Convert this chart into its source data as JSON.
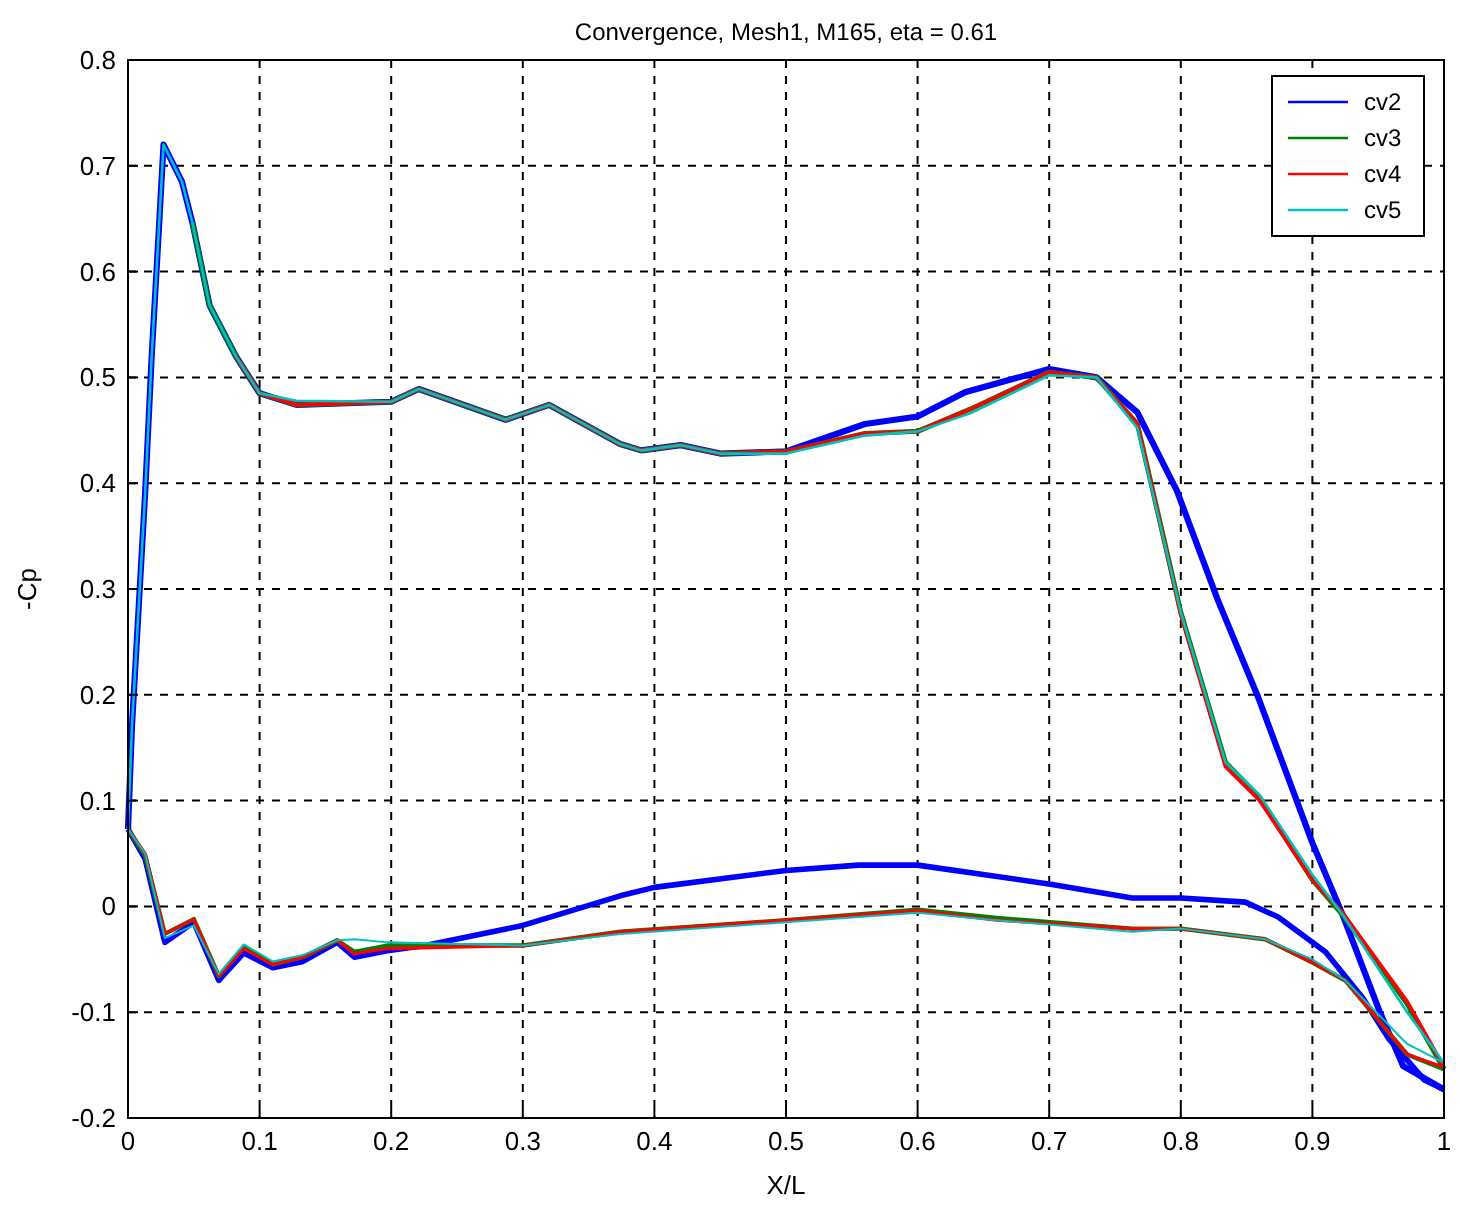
{
  "chart_data": {
    "type": "line",
    "title": "Convergence, Mesh1, M165, eta = 0.61",
    "xlabel": "X/L",
    "ylabel": "-Cp",
    "xlim": [
      0,
      1
    ],
    "ylim": [
      -0.2,
      0.8
    ],
    "xticks": [
      0,
      0.1,
      0.2,
      0.3,
      0.4,
      0.5,
      0.6,
      0.7,
      0.8,
      0.9,
      1
    ],
    "yticks": [
      -0.2,
      -0.1,
      0,
      0.1,
      0.2,
      0.3,
      0.4,
      0.5,
      0.6,
      0.7,
      0.8
    ],
    "grid": true,
    "legend": "top right",
    "line_style": "solid",
    "marker": "none",
    "series": [
      {
        "name": "cv2",
        "color": "#0000ff",
        "x": [
          0,
          0.003,
          0.008,
          0.013,
          0.018,
          0.023,
          0.027,
          0.041,
          0.049,
          0.062,
          0.082,
          0.1,
          0.128,
          0.2,
          0.221,
          0.287,
          0.32,
          0.374,
          0.39,
          0.42,
          0.45,
          0.5,
          0.56,
          0.6,
          0.636,
          0.7,
          0.736,
          0.767,
          0.797,
          0.828,
          0.859,
          0.9,
          0.923,
          0.951,
          0.969,
          1
        ],
        "values": [
          0.073,
          0.17,
          0.28,
          0.39,
          0.52,
          0.63,
          0.72,
          0.685,
          0.646,
          0.568,
          0.52,
          0.485,
          0.474,
          0.477,
          0.489,
          0.46,
          0.474,
          0.437,
          0.431,
          0.436,
          0.428,
          0.43,
          0.456,
          0.463,
          0.486,
          0.508,
          0.5,
          0.467,
          0.393,
          0.29,
          0.197,
          0.06,
          -0.008,
          -0.099,
          -0.151,
          -0.173
        ]
      },
      {
        "color": "#0000ff",
        "x": [
          0,
          0.013,
          0.028,
          0.05,
          0.069,
          0.088,
          0.11,
          0.133,
          0.159,
          0.172,
          0.197,
          0.226,
          0.3,
          0.374,
          0.4,
          0.5,
          0.555,
          0.6,
          0.701,
          0.763,
          0.8,
          0.849,
          0.874,
          0.91,
          0.938,
          0.958,
          0.985,
          1
        ],
        "values": [
          0.073,
          0.045,
          -0.034,
          -0.015,
          -0.07,
          -0.044,
          -0.058,
          -0.052,
          -0.034,
          -0.048,
          -0.042,
          -0.037,
          -0.018,
          0.01,
          0.018,
          0.034,
          0.039,
          0.039,
          0.021,
          0.008,
          0.008,
          0.004,
          -0.01,
          -0.043,
          -0.086,
          -0.125,
          -0.164,
          -0.173
        ]
      },
      {
        "name": "cv3",
        "color": "#008000",
        "x": [
          0.049,
          0.062,
          0.082,
          0.1,
          0.128,
          0.2,
          0.221,
          0.287,
          0.32,
          0.374,
          0.39,
          0.42,
          0.45,
          0.5,
          0.56,
          0.6,
          0.64,
          0.7,
          0.736,
          0.767,
          0.8,
          0.834,
          0.86,
          0.9,
          0.923,
          0.972,
          1
        ],
        "values": [
          0.646,
          0.568,
          0.52,
          0.485,
          0.474,
          0.477,
          0.489,
          0.46,
          0.474,
          0.437,
          0.431,
          0.436,
          0.428,
          0.43,
          0.447,
          0.449,
          0.47,
          0.505,
          0.5,
          0.456,
          0.278,
          0.136,
          0.103,
          0.025,
          -0.008,
          -0.092,
          -0.154
        ]
      },
      {
        "color": "#008000",
        "x": [
          0,
          0.013,
          0.028,
          0.05,
          0.069,
          0.088,
          0.11,
          0.133,
          0.159,
          0.172,
          0.197,
          0.3,
          0.374,
          0.5,
          0.6,
          0.66,
          0.763,
          0.8,
          0.864,
          0.9,
          0.925,
          0.972,
          1
        ],
        "values": [
          0.073,
          0.048,
          -0.026,
          -0.012,
          -0.066,
          -0.038,
          -0.055,
          -0.048,
          -0.032,
          -0.043,
          -0.037,
          -0.037,
          -0.024,
          -0.013,
          -0.003,
          -0.011,
          -0.021,
          -0.021,
          -0.031,
          -0.053,
          -0.07,
          -0.14,
          -0.154
        ]
      },
      {
        "name": "cv4",
        "color": "#ff0000",
        "x": [
          0.082,
          0.1,
          0.128,
          0.2,
          0.221,
          0.287,
          0.32,
          0.374,
          0.39,
          0.42,
          0.45,
          0.5,
          0.56,
          0.6,
          0.64,
          0.7,
          0.736,
          0.767,
          0.8,
          0.834,
          0.86,
          0.9,
          0.923,
          0.972,
          1
        ],
        "values": [
          0.52,
          0.485,
          0.474,
          0.477,
          0.489,
          0.46,
          0.474,
          0.437,
          0.431,
          0.436,
          0.428,
          0.43,
          0.447,
          0.449,
          0.47,
          0.505,
          0.5,
          0.456,
          0.276,
          0.132,
          0.1,
          0.025,
          -0.006,
          -0.09,
          -0.152
        ]
      },
      {
        "color": "#ff0000",
        "x": [
          0,
          0.013,
          0.028,
          0.05,
          0.069,
          0.088,
          0.11,
          0.133,
          0.159,
          0.172,
          0.185,
          0.197,
          0.3,
          0.374,
          0.5,
          0.6,
          0.66,
          0.763,
          0.8,
          0.864,
          0.9,
          0.925,
          0.972,
          1
        ],
        "values": [
          0.073,
          0.05,
          -0.026,
          -0.012,
          -0.066,
          -0.04,
          -0.055,
          -0.048,
          -0.032,
          -0.045,
          -0.042,
          -0.04,
          -0.037,
          -0.024,
          -0.013,
          -0.004,
          -0.013,
          -0.021,
          -0.021,
          -0.031,
          -0.053,
          -0.07,
          -0.14,
          -0.152
        ]
      },
      {
        "name": "cv5",
        "color": "#00c0c0",
        "x": [
          0,
          0.003,
          0.008,
          0.013,
          0.018,
          0.023,
          0.027,
          0.041,
          0.049,
          0.062,
          0.082,
          0.1,
          0.128,
          0.2,
          0.221,
          0.287,
          0.32,
          0.374,
          0.39,
          0.42,
          0.45,
          0.5,
          0.56,
          0.6,
          0.64,
          0.7,
          0.736,
          0.767,
          0.8,
          0.834,
          0.86,
          0.9,
          0.923,
          0.972,
          1
        ],
        "values": [
          0.073,
          0.17,
          0.28,
          0.39,
          0.52,
          0.63,
          0.72,
          0.685,
          0.646,
          0.568,
          0.52,
          0.485,
          0.478,
          0.477,
          0.489,
          0.46,
          0.474,
          0.437,
          0.431,
          0.436,
          0.428,
          0.428,
          0.445,
          0.449,
          0.466,
          0.502,
          0.5,
          0.452,
          0.278,
          0.136,
          0.105,
          0.03,
          -0.008,
          -0.1,
          -0.148
        ]
      },
      {
        "color": "#00c0c0",
        "x": [
          0,
          0.013,
          0.028,
          0.05,
          0.069,
          0.088,
          0.11,
          0.133,
          0.159,
          0.172,
          0.197,
          0.3,
          0.374,
          0.5,
          0.6,
          0.66,
          0.763,
          0.8,
          0.864,
          0.9,
          0.925,
          0.972,
          1
        ],
        "values": [
          0.073,
          0.05,
          -0.03,
          -0.018,
          -0.064,
          -0.036,
          -0.052,
          -0.046,
          -0.032,
          -0.031,
          -0.034,
          -0.037,
          -0.026,
          -0.015,
          -0.006,
          -0.013,
          -0.024,
          -0.021,
          -0.031,
          -0.05,
          -0.07,
          -0.13,
          -0.148
        ]
      }
    ]
  }
}
